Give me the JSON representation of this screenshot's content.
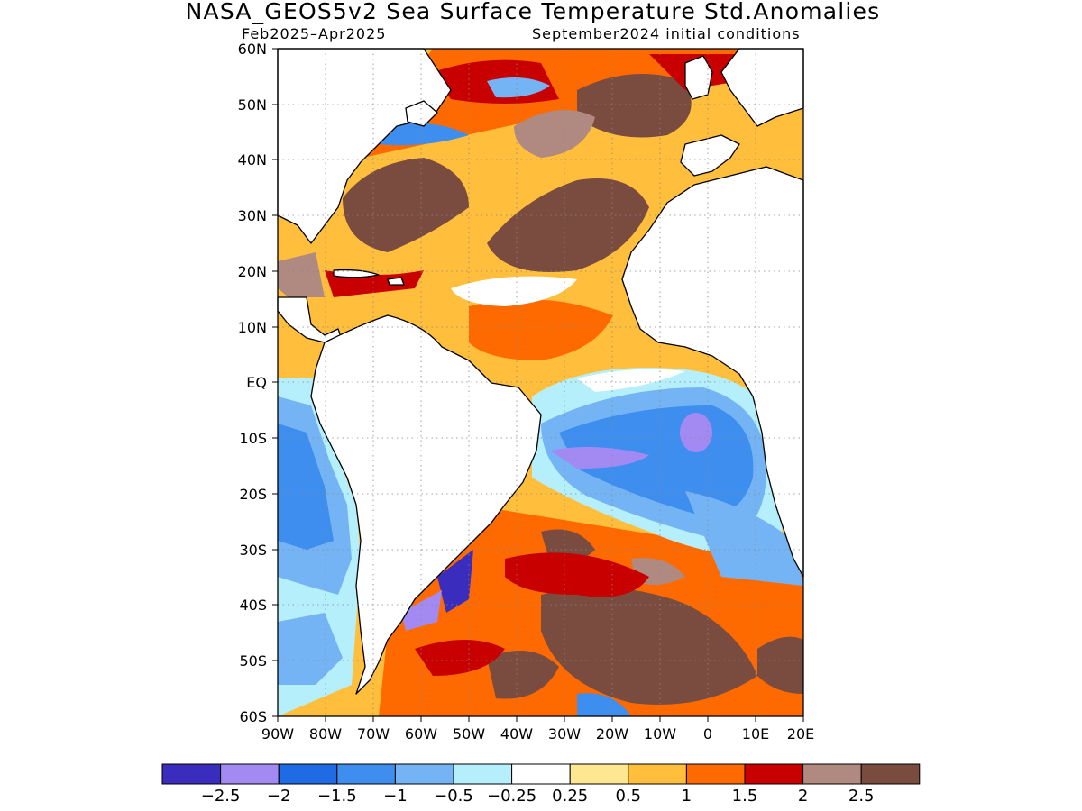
{
  "title": "NASA_GEOS5v2 Sea Surface Temperature Std.Anomalies",
  "subtitle_left": "Feb2025–Apr2025",
  "subtitle_right": "September2024 initial conditions",
  "map": {
    "lon_range": [
      -90,
      20
    ],
    "lat_range": [
      -60,
      60
    ],
    "lat_ticks": [
      "60N",
      "50N",
      "40N",
      "30N",
      "20N",
      "10N",
      "EQ",
      "10S",
      "20S",
      "30S",
      "40S",
      "50S",
      "60S"
    ],
    "lon_ticks": [
      "90W",
      "80W",
      "70W",
      "60W",
      "50W",
      "40W",
      "30W",
      "20W",
      "10W",
      "0",
      "10E",
      "20E"
    ],
    "land_color": "#ffffff",
    "coast_color": "#000000"
  },
  "colorbar": {
    "colors": [
      "#3a2cbd",
      "#a38af3",
      "#1f6ae5",
      "#3d8eee",
      "#74b4f5",
      "#b4effb",
      "#ffffff",
      "#ffe690",
      "#ffbe3c",
      "#ff6a00",
      "#c80000",
      "#b08a80",
      "#7a4c40"
    ],
    "labels": [
      "−2.5",
      "−2",
      "−1.5",
      "−1",
      "−0.5",
      "−0.25",
      "0.25",
      "0.5",
      "1",
      "1.5",
      "2",
      "2.5"
    ]
  }
}
